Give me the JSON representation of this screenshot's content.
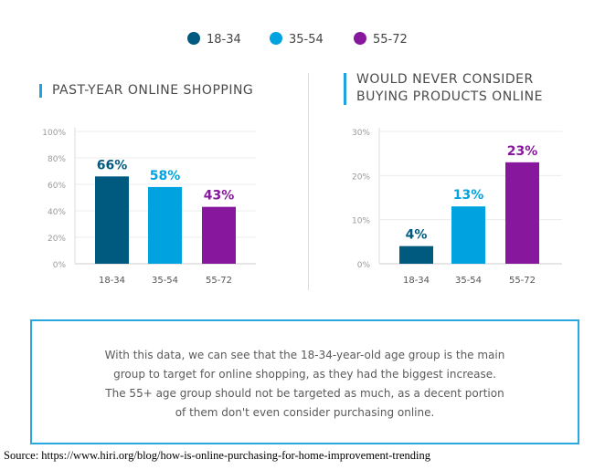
{
  "legend": [
    {
      "label": "18-34",
      "color": "#005a7f"
    },
    {
      "label": "35-54",
      "color": "#00a3e0"
    },
    {
      "label": "55-72",
      "color": "#87189d"
    }
  ],
  "chart_data": [
    {
      "type": "bar",
      "title": "PAST-YEAR ONLINE SHOPPING",
      "categories": [
        "18-34",
        "35-54",
        "55-72"
      ],
      "values": [
        66,
        58,
        43
      ],
      "data_labels": [
        "66%",
        "58%",
        "43%"
      ],
      "ylim": [
        0,
        100
      ],
      "yticks": [
        "0%",
        "20%",
        "40%",
        "60%",
        "80%",
        "100%"
      ],
      "grid": true,
      "colors": [
        "#005a7f",
        "#00a3e0",
        "#87189d"
      ]
    },
    {
      "type": "bar",
      "title": "WOULD NEVER CONSIDER BUYING PRODUCTS ONLINE",
      "title_lines": [
        "WOULD NEVER CONSIDER",
        "BUYING PRODUCTS ONLINE"
      ],
      "categories": [
        "18-34",
        "35-54",
        "55-72"
      ],
      "values": [
        4,
        13,
        23
      ],
      "data_labels": [
        "4%",
        "13%",
        "23%"
      ],
      "ylim": [
        0,
        30
      ],
      "yticks": [
        "0%",
        "10%",
        "20%",
        "30%"
      ],
      "grid": true,
      "colors": [
        "#005a7f",
        "#00a3e0",
        "#87189d"
      ]
    }
  ],
  "note": {
    "lines": [
      "With this data, we can see that the 18-34-year-old age group is the main",
      "group to target for online shopping, as they had the biggest increase.",
      "The 55+ age group should not be targeted as much, as a decent portion",
      "of them don't even consider purchasing online."
    ]
  },
  "source": "Source: https://www.hiri.org/blog/how-is-online-purchasing-for-home-improvement-trending"
}
